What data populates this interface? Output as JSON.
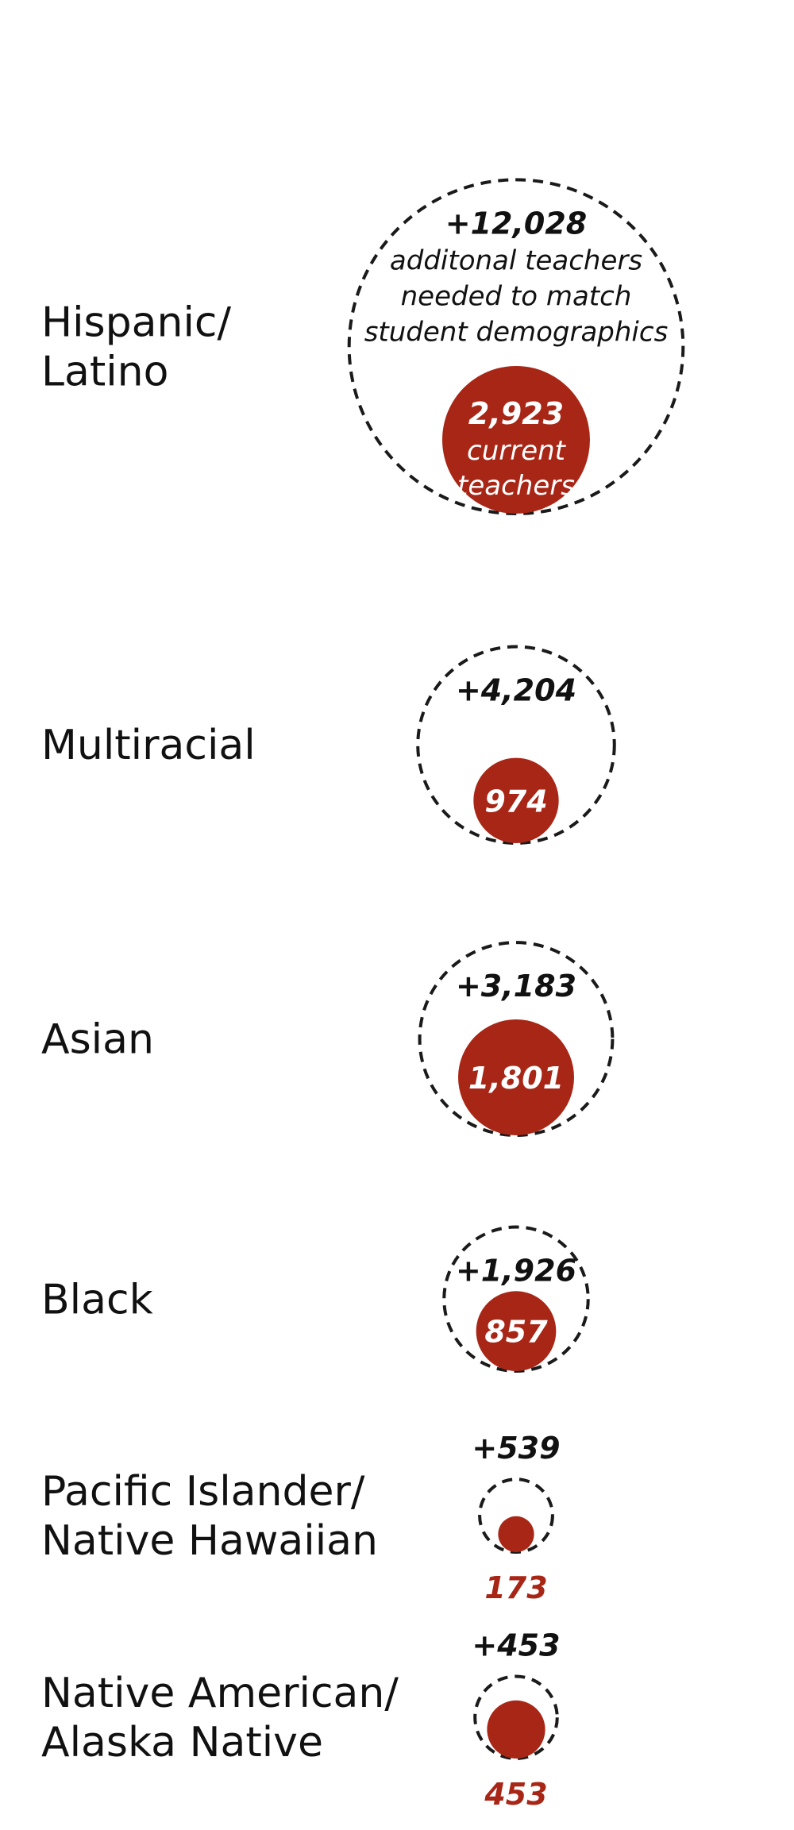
{
  "colors": {
    "current": "#a82616",
    "needed_outline": "#1a1a1a",
    "label_text": "#111111",
    "current_text_inside": "#ffffff"
  },
  "annotations": {
    "needed_caption": [
      "additonal teachers",
      "needed to match",
      "student demographics"
    ],
    "current_caption": [
      "current",
      "teachers"
    ]
  },
  "chart_data": {
    "type": "bubble",
    "title": "",
    "series": [
      {
        "name": "current teachers",
        "key": "current"
      },
      {
        "name": "additonal teachers needed to match student demographics",
        "key": "additional"
      }
    ],
    "groups": [
      {
        "label_lines": [
          "Hispanic/",
          "Latino"
        ],
        "current": 2923,
        "current_label": "2,923",
        "additional": 12028,
        "additional_label": "+12,028"
      },
      {
        "label_lines": [
          "Multiracial"
        ],
        "current": 974,
        "current_label": "974",
        "additional": 4204,
        "additional_label": "+4,204"
      },
      {
        "label_lines": [
          "Asian"
        ],
        "current": 1801,
        "current_label": "1,801",
        "additional": 3183,
        "additional_label": "+3,183"
      },
      {
        "label_lines": [
          "Black"
        ],
        "current": 857,
        "current_label": "857",
        "additional": 1926,
        "additional_label": "+1,926"
      },
      {
        "label_lines": [
          "Pacific Islander/",
          "Native Hawaiian"
        ],
        "current": 173,
        "current_label": "173",
        "additional": 539,
        "additional_label": "+539"
      },
      {
        "label_lines": [
          "Native American/",
          "Alaska Native"
        ],
        "current": 453,
        "current_label": "453",
        "additional": 453,
        "additional_label": "+453"
      }
    ]
  }
}
